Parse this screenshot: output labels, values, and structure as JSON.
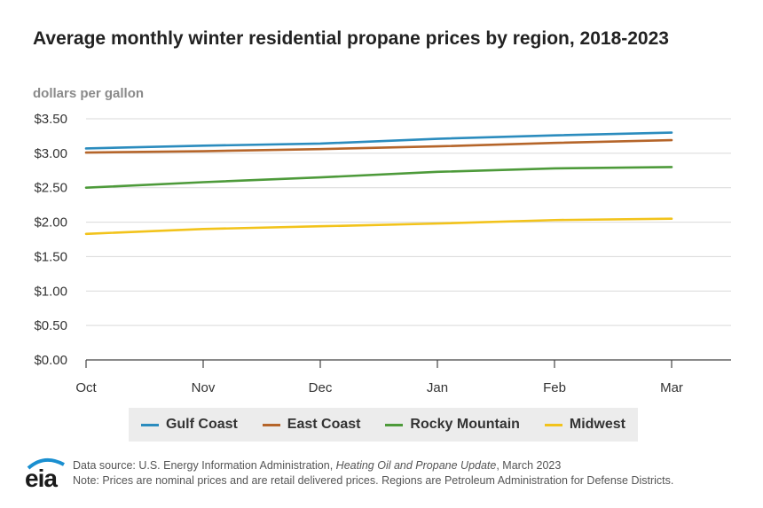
{
  "title": "Average monthly winter residential propane prices by region, 2018-2023",
  "unit_label": "dollars per gallon",
  "colors": {
    "gulf_coast": "#2b8cbe",
    "east_coast": "#b5652a",
    "rocky_mountain": "#4d9a3a",
    "midwest": "#f2c31b"
  },
  "chart_data": {
    "type": "line",
    "title": "Average monthly winter residential propane prices by region, 2018-2023",
    "ylabel": "dollars per gallon",
    "xlabel": "",
    "categories": [
      "Oct",
      "Nov",
      "Dec",
      "Jan",
      "Feb",
      "Mar"
    ],
    "ylim": [
      0,
      3.5
    ],
    "yticks": [
      0,
      0.5,
      1.0,
      1.5,
      2.0,
      2.5,
      3.0,
      3.5
    ],
    "ytick_labels": [
      "$0.00",
      "$0.50",
      "$1.00",
      "$1.50",
      "$2.00",
      "$2.50",
      "$3.00",
      "$3.50"
    ],
    "grid": true,
    "legend": "bottom",
    "series": [
      {
        "name": "Gulf Coast",
        "color": "#2b8cbe",
        "values": [
          3.07,
          3.11,
          3.14,
          3.21,
          3.26,
          3.3
        ]
      },
      {
        "name": "East Coast",
        "color": "#b5652a",
        "values": [
          3.01,
          3.03,
          3.06,
          3.1,
          3.15,
          3.19
        ]
      },
      {
        "name": "Rocky Mountain",
        "color": "#4d9a3a",
        "values": [
          2.5,
          2.58,
          2.65,
          2.73,
          2.78,
          2.8
        ]
      },
      {
        "name": "Midwest",
        "color": "#f2c31b",
        "values": [
          1.83,
          1.9,
          1.94,
          1.98,
          2.03,
          2.05
        ]
      }
    ]
  },
  "logo": {
    "text": "eia"
  },
  "footer": {
    "source_prefix": "Data source: U.S. Energy Information Administration, ",
    "source_title": "Heating Oil and Propane Update",
    "source_suffix": ", March 2023",
    "note": "Note: Prices are nominal prices and are retail delivered prices. Regions are Petroleum Administration for Defense Districts."
  }
}
